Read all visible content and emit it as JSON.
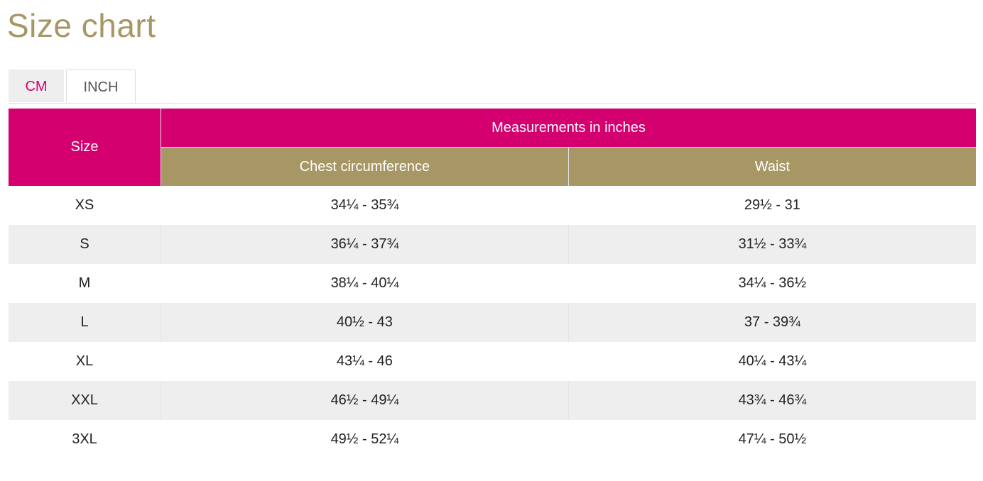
{
  "page": {
    "title": "Size chart"
  },
  "tabs": [
    {
      "label": "CM",
      "active": false
    },
    {
      "label": "INCH",
      "active": true
    }
  ],
  "table": {
    "size_header": "Size",
    "group_header": "Measurements in inches",
    "columns": [
      "Chest circumference",
      "Waist"
    ],
    "rows": [
      {
        "size": "XS",
        "chest": "34¼ - 35¾",
        "waist": "29½  - 31"
      },
      {
        "size": "S",
        "chest": "36¼ - 37¾",
        "waist": "31½  - 33¾"
      },
      {
        "size": "M",
        "chest": "38¼ - 40¼",
        "waist": "34¼ - 36½"
      },
      {
        "size": "L",
        "chest": "40½  - 43",
        "waist": "37 - 39¾"
      },
      {
        "size": "XL",
        "chest": "43¼ - 46",
        "waist": "40¼ - 43¼"
      },
      {
        "size": "XXL",
        "chest": "46½  - 49¼",
        "waist": "43¾ - 46¾"
      },
      {
        "size": "3XL",
        "chest": "49½  - 52¼",
        "waist": "47¼ - 50½"
      }
    ]
  },
  "colors": {
    "title": "#a69764",
    "primary_header": "#d4006f",
    "secondary_header": "#a69764",
    "active_tab_text": "#555555",
    "inactive_tab_text": "#d4006f",
    "striped_row": "#eeeeee"
  }
}
